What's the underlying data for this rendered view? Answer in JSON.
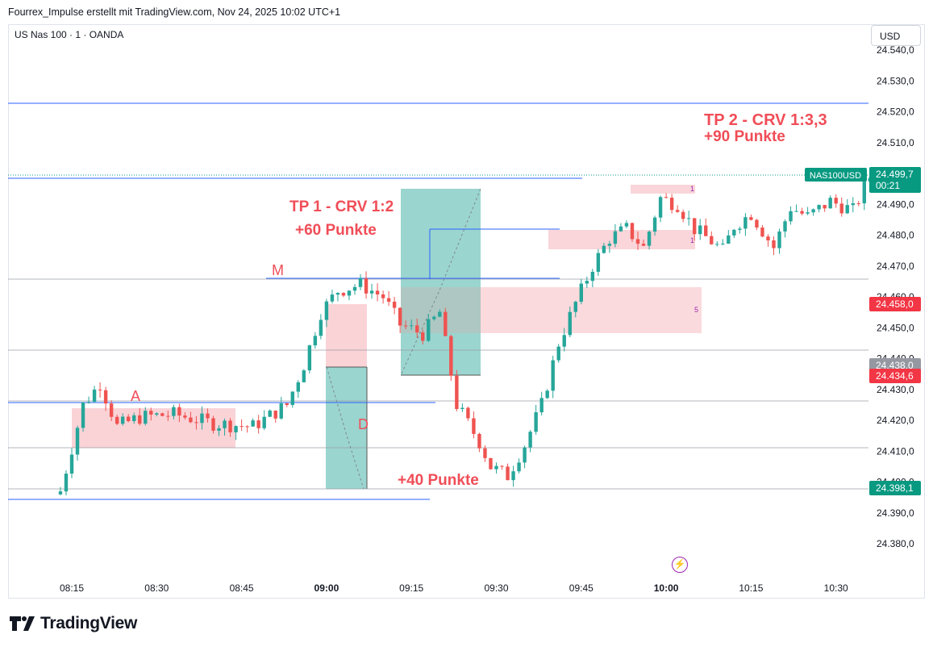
{
  "header": {
    "title": "Fourrex_Impulse erstellt mit TradingView.com, Nov 24, 2025 10:02 UTC+1"
  },
  "symbol": "US Nas 100 · 1 · OANDA",
  "currency": "USD",
  "brand": "TradingView",
  "icons": {
    "bolt": "lightning-icon",
    "logo": "tradingview-logo-icon"
  },
  "colors": {
    "up": "#26a69a",
    "down": "#ef5350",
    "annotation": "#f04d57",
    "trendline": "#2962ff",
    "price_tag": "#089981",
    "zone_red": "#f9cbd0",
    "zone_green": "#9bd5cf"
  },
  "chart_data": {
    "type": "candlestick",
    "timeframe": "1",
    "x_ticks": [
      "08:15",
      "08:30",
      "08:45",
      "09:00",
      "09:15",
      "09:30",
      "09:45",
      "10:00",
      "10:15",
      "10:30"
    ],
    "bold_ticks": [
      "09:00",
      "10:00"
    ],
    "y_ticks": [
      "24.540,0",
      "24.530,0",
      "24.520,0",
      "24.510,0",
      "24.490,0",
      "24.480,0",
      "24.470,0",
      "24.460,0",
      "24.450,0",
      "24.440,0",
      "24.430,0",
      "24.420,0",
      "24.410,0",
      "24.400,0",
      "24.390,0",
      "24.380,0"
    ],
    "ylim": [
      24373,
      24541
    ],
    "price_labels": [
      {
        "symbol": "NAS100USD",
        "value": "24.499,7",
        "countdown": "00:21",
        "color": "#089981"
      },
      {
        "value": "24.458,0",
        "color": "#f23645"
      },
      {
        "value": "24.438,0",
        "color": "#9598a1"
      },
      {
        "value": "24.434,6",
        "color": "#f23645"
      },
      {
        "value": "24.398,1",
        "color": "#089981"
      }
    ],
    "annotations": [
      {
        "text": "A"
      },
      {
        "text": "M"
      },
      {
        "text": "D"
      },
      {
        "text": "TP 1 - CRV 1:2"
      },
      {
        "text": "+60 Punkte"
      },
      {
        "text": "+40 Punkte"
      },
      {
        "text": "TP 2 - CRV 1:3,3"
      },
      {
        "text": "+90 Punkte"
      }
    ],
    "box_labels": [
      "1",
      "1",
      "5"
    ],
    "current_price": 24499.7
  }
}
